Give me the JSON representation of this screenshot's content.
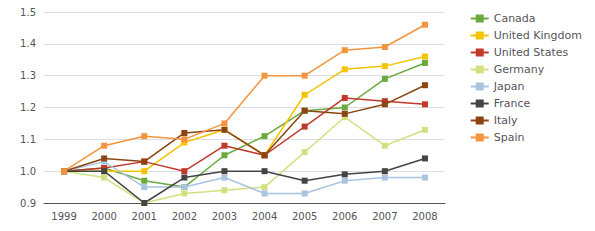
{
  "chart_data": {
    "type": "line",
    "categories": [
      "1999",
      "2000",
      "2001",
      "2002",
      "2003",
      "2004",
      "2005",
      "2006",
      "2007",
      "2008"
    ],
    "series": [
      {
        "name": "Canada",
        "color": "#6aaa3c",
        "marker": "square",
        "values": [
          1.0,
          1.01,
          0.97,
          0.95,
          1.05,
          1.11,
          1.19,
          1.2,
          1.29,
          1.34
        ]
      },
      {
        "name": "United Kingdom",
        "color": "#f5c400",
        "marker": "square",
        "values": [
          1.0,
          1.0,
          1.0,
          1.09,
          1.13,
          1.05,
          1.24,
          1.32,
          1.33,
          1.36
        ]
      },
      {
        "name": "United States",
        "color": "#c0392b",
        "marker": "square",
        "values": [
          1.0,
          1.01,
          1.03,
          1.0,
          1.08,
          1.05,
          1.14,
          1.23,
          1.22,
          1.21
        ]
      },
      {
        "name": "Germany",
        "color": "#d4e080",
        "marker": "square",
        "values": [
          1.0,
          0.98,
          0.9,
          0.93,
          0.94,
          0.95,
          1.06,
          1.17,
          1.08,
          1.13
        ]
      },
      {
        "name": "Japan",
        "color": "#a8c4e0",
        "marker": "square",
        "values": [
          1.0,
          1.03,
          0.95,
          0.95,
          0.98,
          0.93,
          0.93,
          0.97,
          0.98,
          0.98
        ]
      },
      {
        "name": "France",
        "color": "#444444",
        "marker": "square",
        "values": [
          1.0,
          1.0,
          0.9,
          0.98,
          1.0,
          1.0,
          0.97,
          0.99,
          1.0,
          1.04
        ]
      },
      {
        "name": "Italy",
        "color": "#8b4513",
        "marker": "square",
        "values": [
          1.0,
          1.04,
          1.03,
          1.12,
          1.13,
          1.05,
          1.19,
          1.18,
          1.21,
          1.27
        ]
      },
      {
        "name": "Spain",
        "color": "#f5943c",
        "marker": "square",
        "values": [
          1.0,
          1.08,
          1.11,
          1.1,
          1.15,
          1.3,
          1.3,
          1.38,
          1.39,
          1.46
        ]
      }
    ],
    "ylim": [
      0.9,
      1.5
    ],
    "yticks": [
      0.9,
      {
        "value": 1.0,
        "label": "1.0"
      },
      1.1,
      1.2,
      1.3,
      1.4,
      1.5
    ],
    "grid": true,
    "legend": "right"
  }
}
